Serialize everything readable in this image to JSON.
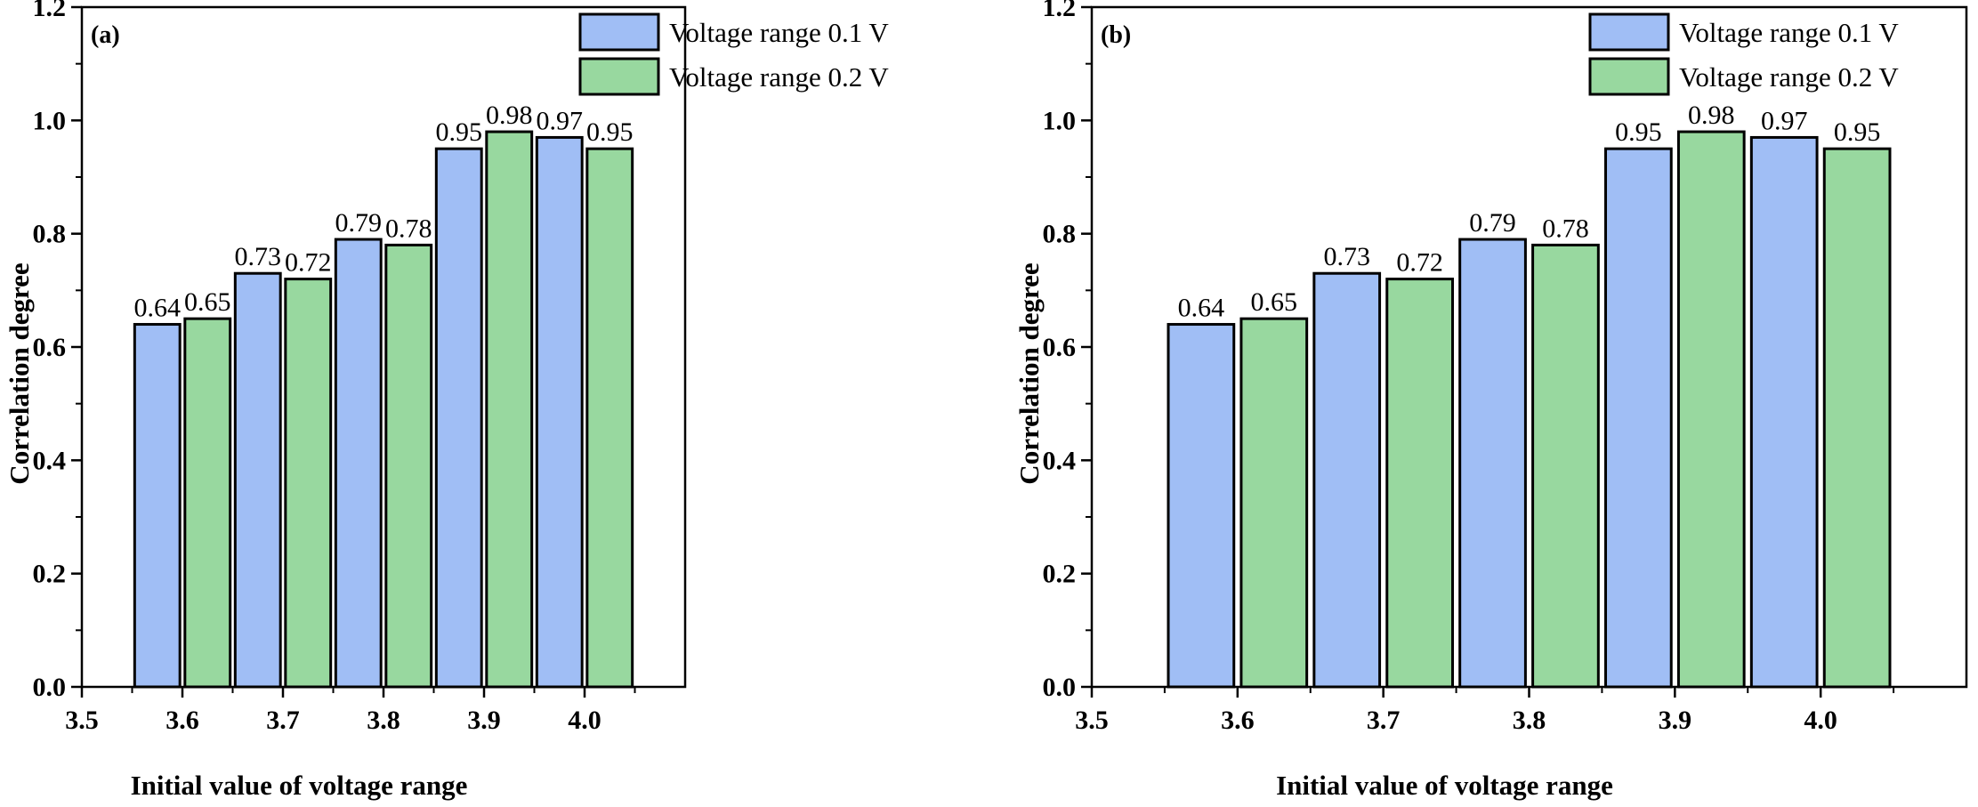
{
  "chart_data": [
    {
      "type": "bar",
      "panel_label": "(a)",
      "xlabel": "Initial value of voltage range",
      "ylabel": "Correlation degree",
      "xlim": [
        3.5,
        4.1
      ],
      "ylim": [
        0.0,
        1.2
      ],
      "x_ticks": [
        3.5,
        3.6,
        3.7,
        3.8,
        3.9,
        4.0
      ],
      "x_tick_labels": [
        "3.5",
        "3.6",
        "3.7",
        "3.8",
        "3.9",
        "4.0"
      ],
      "y_ticks": [
        0.0,
        0.2,
        0.4,
        0.6,
        0.8,
        1.0,
        1.2
      ],
      "y_tick_labels": [
        "0.0",
        "0.2",
        "0.4",
        "0.6",
        "0.8",
        "1.0",
        "1.2"
      ],
      "categories": [
        3.6,
        3.7,
        3.8,
        3.9,
        4.0
      ],
      "bar_width": 0.045,
      "series": [
        {
          "name": "Voltage range 0.1 V",
          "color": "#a0bef5",
          "offset": -0.025,
          "values": [
            0.64,
            0.73,
            0.79,
            0.95,
            0.97
          ],
          "labels": [
            "0.64",
            "0.73",
            "0.79",
            "0.95",
            "0.97"
          ]
        },
        {
          "name": "Voltage range 0.2 V",
          "color": "#98d89f",
          "offset": 0.025,
          "values": [
            0.65,
            0.72,
            0.78,
            0.98,
            0.95
          ],
          "labels": [
            "0.65",
            "0.72",
            "0.78",
            "0.98",
            "0.95"
          ]
        }
      ],
      "legend_position": "top-right"
    },
    {
      "type": "bar",
      "panel_label": "(b)",
      "xlabel": "Initial value of voltage range",
      "ylabel": "Correlation degree",
      "xlim": [
        3.5,
        4.1
      ],
      "ylim": [
        0.0,
        1.2
      ],
      "x_ticks": [
        3.5,
        3.6,
        3.7,
        3.8,
        3.9,
        4.0
      ],
      "x_tick_labels": [
        "3.5",
        "3.6",
        "3.7",
        "3.8",
        "3.9",
        "4.0"
      ],
      "y_ticks": [
        0.0,
        0.2,
        0.4,
        0.6,
        0.8,
        1.0,
        1.2
      ],
      "y_tick_labels": [
        "0.0",
        "0.2",
        "0.4",
        "0.6",
        "0.8",
        "1.0",
        "1.2"
      ],
      "categories": [
        3.6,
        3.7,
        3.8,
        3.9,
        4.0
      ],
      "bar_width": 0.045,
      "series": [
        {
          "name": "Voltage range 0.1 V",
          "color": "#a0bef5",
          "offset": -0.025,
          "values": [
            0.64,
            0.73,
            0.79,
            0.95,
            0.97
          ],
          "labels": [
            "0.64",
            "0.73",
            "0.79",
            "0.95",
            "0.97"
          ]
        },
        {
          "name": "Voltage range 0.2 V",
          "color": "#98d89f",
          "offset": 0.025,
          "values": [
            0.65,
            0.72,
            0.78,
            0.98,
            0.95
          ],
          "labels": [
            "0.65",
            "0.72",
            "0.78",
            "0.98",
            "0.95"
          ]
        }
      ],
      "legend_position": "top-right"
    }
  ]
}
